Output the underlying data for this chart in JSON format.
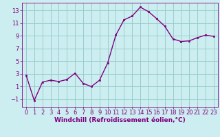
{
  "x": [
    0,
    1,
    2,
    3,
    4,
    5,
    6,
    7,
    8,
    9,
    10,
    11,
    12,
    13,
    14,
    15,
    16,
    17,
    18,
    19,
    20,
    21,
    22,
    23
  ],
  "y": [
    2.8,
    -1.2,
    1.7,
    2.0,
    1.8,
    2.1,
    3.1,
    1.5,
    1.0,
    2.0,
    4.7,
    9.1,
    11.5,
    12.1,
    13.5,
    12.8,
    11.7,
    10.5,
    8.5,
    8.1,
    8.2,
    8.7,
    9.1,
    8.9
  ],
  "line_color": "#800080",
  "marker": "s",
  "marker_size": 2,
  "line_width": 1.0,
  "bg_color": "#cceef0",
  "grid_color": "#99cccc",
  "xlabel": "Windchill (Refroidissement éolien,°C)",
  "ylabel": "",
  "xlim": [
    -0.5,
    23.5
  ],
  "ylim": [
    -2.2,
    14.2
  ],
  "yticks": [
    -1,
    1,
    3,
    5,
    7,
    9,
    11,
    13
  ],
  "xticks": [
    0,
    1,
    2,
    3,
    4,
    5,
    6,
    7,
    8,
    9,
    10,
    11,
    12,
    13,
    14,
    15,
    16,
    17,
    18,
    19,
    20,
    21,
    22,
    23
  ],
  "tick_fontsize": 6,
  "xlabel_fontsize": 6.5
}
